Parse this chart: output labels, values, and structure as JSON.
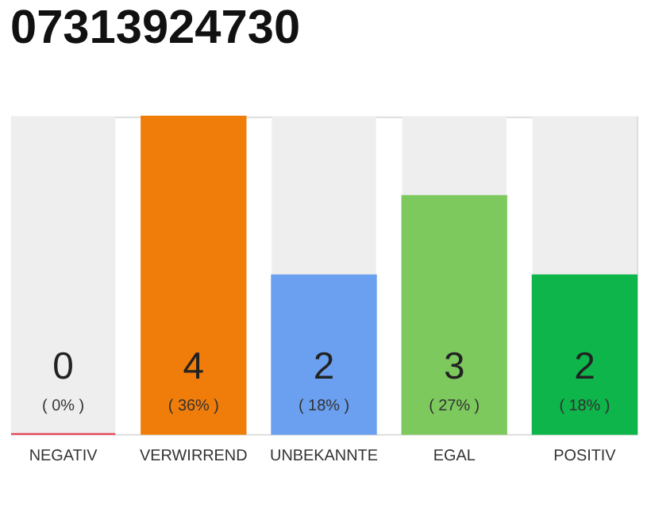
{
  "chart_data": {
    "type": "bar",
    "title": "07313924730",
    "categories": [
      "NEGATIV",
      "VERWIRREND",
      "UNBEKANNTE",
      "EGAL",
      "POSITIV"
    ],
    "tick_labels": "x",
    "data_labels": true,
    "colors": [
      "#e8334a",
      "#f07d0a",
      "#6aa0ef",
      "#7dc95e",
      "#0db54a"
    ],
    "values": [
      0,
      4,
      2,
      3,
      2
    ],
    "annotations": [
      "( 0% )",
      "( 36% )",
      "( 18% )",
      "( 27% )",
      "( 18% )"
    ]
  }
}
